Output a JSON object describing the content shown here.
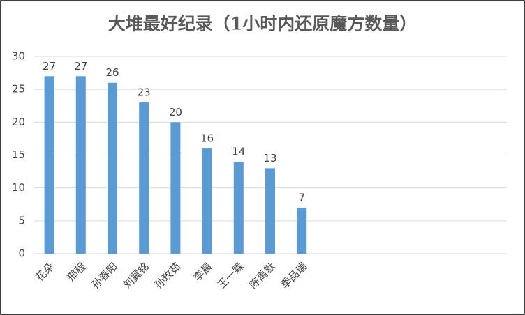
{
  "chart_data": {
    "type": "bar",
    "title": "大堆最好纪录（1小时内还原魔方数量）",
    "categories": [
      "花朵",
      "邢程",
      "孙春阳",
      "刘翼铭",
      "孙玫茹",
      "李晨",
      "王一霖",
      "陈禹默",
      "季品瑞",
      null,
      null,
      null,
      null,
      null,
      null
    ],
    "values": [
      27,
      27,
      26,
      23,
      20,
      16,
      14,
      13,
      7,
      null,
      null,
      null,
      null,
      null,
      null
    ],
    "color": "#5b9bd5",
    "ylim": [
      0,
      30
    ],
    "yticks": [
      0,
      5,
      10,
      15,
      20,
      25,
      30
    ],
    "grid": true,
    "data_labels": true
  }
}
